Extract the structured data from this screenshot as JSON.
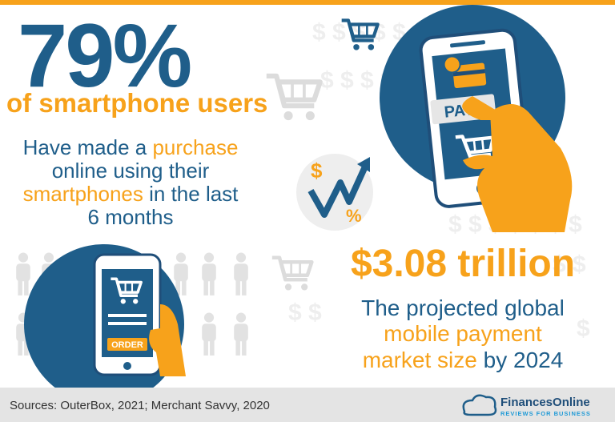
{
  "stat_users": {
    "value": "79%",
    "subject": "of smartphone users",
    "description": [
      [
        "Have made a ",
        "purchase"
      ],
      [
        "online using their"
      ],
      [
        "smartphones",
        " in the last"
      ],
      [
        "6 months"
      ]
    ]
  },
  "stat_market": {
    "value": "$3.08 trillion",
    "description": [
      [
        "The projected global"
      ],
      [
        "mobile payment"
      ],
      [
        "market size",
        " by 2024"
      ]
    ]
  },
  "icons": {
    "pay": "PAY",
    "order": "ORDER",
    "dollar": "$",
    "percent": "%"
  },
  "footer": {
    "sources": "Sources: OuterBox, 2021; Merchant Savvy, 2020",
    "brand": "FinancesOnline",
    "tagline": "REVIEWS FOR BUSINESS"
  }
}
